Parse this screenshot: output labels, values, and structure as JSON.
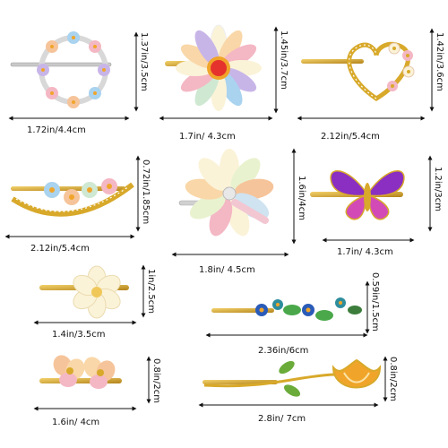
{
  "items": [
    {
      "name": "Wreath flower clip",
      "width": "1.72in/4.4cm",
      "height": "1.37in/3.5cm"
    },
    {
      "name": "Daisy clip",
      "width": "1.7in/ 4.3cm",
      "height": "1.45in/3.7cm"
    },
    {
      "name": "Heart clip",
      "width": "2.12in/5.4cm",
      "height": "1.42in/3.6cm"
    },
    {
      "name": "Crescent flower clip",
      "width": "2.12in/5.4cm",
      "height": "0.72in/1.85cm"
    },
    {
      "name": "Large daisy clip",
      "width": "1.8in/ 4.5cm",
      "height": "1.6in/4cm"
    },
    {
      "name": "Butterfly clip",
      "width": "1.7in/ 4.3cm",
      "height": "1.2in/3cm"
    },
    {
      "name": "Small white flower clip",
      "width": "1.4in/3.5cm",
      "height": "1in/2.5cm"
    },
    {
      "name": "Blue and green flower bar",
      "width": "2.36in/6cm",
      "height": "0.59in/1.5cm"
    },
    {
      "name": "Peach double flower clip",
      "width": "1.6in/ 4cm",
      "height": "0.8in/2cm"
    },
    {
      "name": "Tulip rose clip",
      "width": "2.8in/ 7cm",
      "height": "0.8in/2cm"
    }
  ],
  "colors": {
    "gold": "#d8a92a",
    "gold_dark": "#b3831a",
    "pink": "#f4b7c4",
    "peach": "#f6c49a",
    "lilac": "#c8b5e8",
    "sky": "#a9d3ef",
    "cream": "#fbf3d8",
    "purple": "#8a2fc2",
    "magenta": "#d24ab6",
    "green": "#4aa84a",
    "teal": "#2e8d9c",
    "orange": "#f0a52a",
    "red": "#e5322d"
  }
}
